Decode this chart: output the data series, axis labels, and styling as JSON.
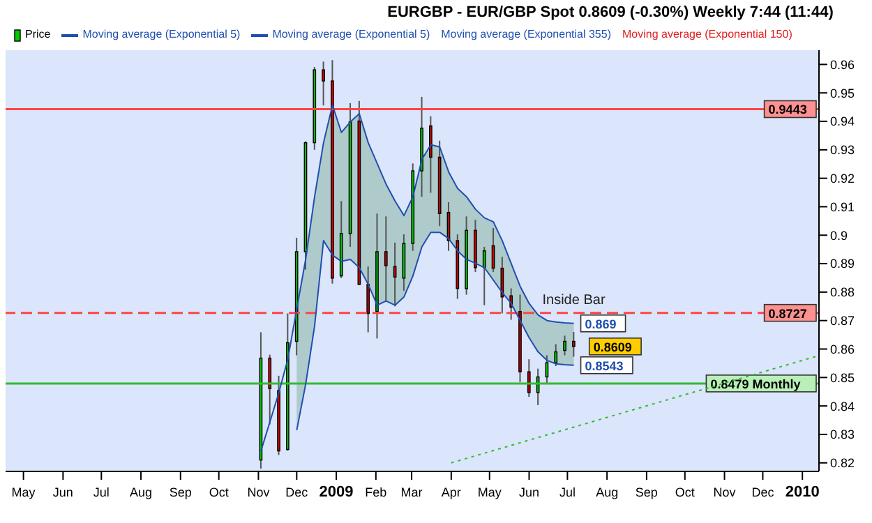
{
  "chart_data": {
    "type": "candlestick",
    "title": "EURGBP - EUR/GBP Spot   0.8609 (-0.30%)   Weekly 7:44 (11:44)",
    "x": [
      "2008-11-03",
      "2008-11-10",
      "2008-11-17",
      "2008-11-24",
      "2008-12-01",
      "2008-12-08",
      "2008-12-15",
      "2008-12-22",
      "2008-12-29",
      "2009-01-05",
      "2009-01-12",
      "2009-01-19",
      "2009-01-26",
      "2009-02-02",
      "2009-02-09",
      "2009-02-16",
      "2009-02-23",
      "2009-03-02",
      "2009-03-09",
      "2009-03-16",
      "2009-03-23",
      "2009-03-30",
      "2009-04-06",
      "2009-04-13",
      "2009-04-20",
      "2009-04-27",
      "2009-05-04",
      "2009-05-11",
      "2009-05-18",
      "2009-05-25",
      "2009-06-01",
      "2009-06-08",
      "2009-06-15",
      "2009-06-22",
      "2009-06-29",
      "2009-07-06"
    ],
    "series": [
      {
        "name": "Price",
        "value_labels": [
          null,
          null,
          null,
          null,
          null,
          null,
          null,
          null,
          null,
          null,
          null,
          null,
          null,
          null,
          null,
          null,
          null,
          null,
          null,
          null,
          null,
          null,
          null,
          null,
          null,
          null,
          null,
          null,
          null,
          null,
          null,
          null,
          null,
          null,
          null,
          "0.8609"
        ],
        "colors": [
          "#00cc00",
          "#dd0000",
          "#dd0000",
          "#00cc00",
          "#00cc00",
          "#00cc00",
          "#00cc00",
          "#dd0000",
          "#dd0000",
          "#00cc00",
          "#00cc00",
          "#dd0000",
          "#dd0000",
          "#00cc00",
          "#dd0000",
          "#dd0000",
          "#00cc00",
          "#00cc00",
          "#00cc00",
          "#dd0000",
          "#dd0000",
          "#dd0000",
          "#dd0000",
          "#00cc00",
          "#dd0000",
          "#00cc00",
          "#dd0000",
          "#dd0000",
          "#dd0000",
          "#dd0000",
          "#dd0000",
          "#00cc00",
          "#00cc00",
          "#00cc00",
          "#00cc00",
          "#dd0000"
        ],
        "ohlc": [
          [
            0.821,
            0.8659,
            0.818,
            0.8568
          ],
          [
            0.8568,
            0.858,
            0.8335,
            0.8461
          ],
          [
            0.8454,
            0.8506,
            0.8228,
            0.8242
          ],
          [
            0.8247,
            0.8725,
            0.8243,
            0.8622
          ],
          [
            0.8627,
            0.8991,
            0.8578,
            0.8942
          ],
          [
            0.8942,
            0.933,
            0.8879,
            0.9325
          ],
          [
            0.9325,
            0.9591,
            0.93,
            0.9581
          ],
          [
            0.9581,
            0.961,
            0.9456,
            0.9542
          ],
          [
            0.9542,
            0.9615,
            0.883,
            0.8849
          ],
          [
            0.8857,
            0.912,
            0.8849,
            0.9006
          ],
          [
            0.9006,
            0.9464,
            0.8959,
            0.9398
          ],
          [
            0.9401,
            0.9472,
            0.8825,
            0.8827
          ],
          [
            0.8827,
            0.889,
            0.8659,
            0.8725
          ],
          [
            0.8732,
            0.9076,
            0.8637,
            0.8942
          ],
          [
            0.8942,
            0.9066,
            0.8769,
            0.8893
          ],
          [
            0.889,
            0.8974,
            0.875,
            0.8853
          ],
          [
            0.8849,
            0.9003,
            0.8805,
            0.8971
          ],
          [
            0.8971,
            0.9252,
            0.8945,
            0.9226
          ],
          [
            0.9226,
            0.9486,
            0.9135,
            0.9376
          ],
          [
            0.9384,
            0.9418,
            0.9149,
            0.9274
          ],
          [
            0.9274,
            0.9332,
            0.9032,
            0.9076
          ],
          [
            0.908,
            0.9116,
            0.8945,
            0.8981
          ],
          [
            0.8981,
            0.9003,
            0.8776,
            0.8813
          ],
          [
            0.8812,
            0.9066,
            0.8791,
            0.9017
          ],
          [
            0.9017,
            0.9054,
            0.8871,
            0.8886
          ],
          [
            0.8886,
            0.8959,
            0.8754,
            0.8945
          ],
          [
            0.8963,
            0.9025,
            0.8871,
            0.8884
          ],
          [
            0.8884,
            0.8924,
            0.8725,
            0.8783
          ],
          [
            0.8787,
            0.8813,
            0.8703,
            0.8747
          ],
          [
            0.8732,
            0.8791,
            0.8484,
            0.852
          ],
          [
            0.852,
            0.8564,
            0.8432,
            0.8447
          ],
          [
            0.8447,
            0.8531,
            0.8403,
            0.8502
          ],
          [
            0.8502,
            0.8578,
            0.8476,
            0.8552
          ],
          [
            0.8552,
            0.8617,
            0.854,
            0.859
          ],
          [
            0.8595,
            0.8647,
            0.8578,
            0.8627
          ],
          [
            0.8627,
            0.866,
            0.8573,
            0.8609
          ]
        ]
      },
      {
        "name": "Moving average (Exponential 5)",
        "type": "line",
        "color": "#1f4fb0",
        "value_labels": [
          null,
          null,
          null,
          null,
          null,
          null,
          null,
          null,
          null,
          null,
          null,
          null,
          null,
          null,
          null,
          null,
          null,
          null,
          null,
          null,
          null,
          null,
          null,
          null,
          null,
          null,
          null,
          null,
          null,
          null,
          null,
          null,
          null,
          null,
          null,
          "0.869"
        ],
        "lower": [
          null,
          null,
          null,
          null,
          0.8315,
          0.8476,
          0.8681,
          0.8981,
          0.893,
          0.8908,
          0.8915,
          0.8886,
          0.8827,
          0.8754,
          0.8769,
          0.8754,
          0.8783,
          0.8857,
          0.8959,
          0.901,
          0.901,
          0.8988,
          0.8945,
          0.8915,
          0.8901,
          0.8886,
          0.8842,
          0.8798,
          0.876,
          0.87,
          0.864,
          0.859,
          0.856,
          0.8548,
          0.8545,
          0.8543
        ],
        "upper": [
          null,
          null,
          null,
          null,
          0.874,
          0.8915,
          0.9135,
          0.9325,
          0.9457,
          0.9361,
          0.9398,
          0.9427,
          0.9325,
          0.9252,
          0.9179,
          0.912,
          0.9069,
          0.9135,
          0.9266,
          0.9318,
          0.931,
          0.9222,
          0.9164,
          0.9135,
          0.9091,
          0.9061,
          0.9047,
          0.898,
          0.89,
          0.882,
          0.876,
          0.872,
          0.87,
          0.8695,
          0.8692,
          0.869
        ],
        "values": [
          0.8242,
          0.8344,
          0.8447,
          0.8564,
          0.874,
          0.8915,
          0.9135,
          0.9325,
          0.9457,
          0.9361,
          0.9398,
          0.9427,
          0.9325,
          0.9252,
          0.9179,
          0.912,
          0.9069,
          0.9135,
          0.9266,
          0.9318,
          0.931,
          0.9222,
          0.9164,
          0.9135,
          0.9091,
          0.9061,
          0.9047,
          0.898,
          0.89,
          0.882,
          0.876,
          0.872,
          0.87,
          0.8695,
          0.8692,
          0.869
        ]
      },
      {
        "name": "Moving average (Exponential 5)",
        "type": "line",
        "color": "#1f4fb0",
        "value_labels": [
          null,
          null,
          null,
          null,
          null,
          null,
          null,
          null,
          null,
          null,
          null,
          null,
          null,
          null,
          null,
          null,
          null,
          null,
          null,
          null,
          null,
          null,
          null,
          null,
          null,
          null,
          null,
          null,
          null,
          null,
          null,
          null,
          null,
          null,
          null,
          "0.8543"
        ],
        "values": [
          null,
          null,
          null,
          null,
          0.8315,
          0.8476,
          0.8681,
          0.8981,
          0.893,
          0.8908,
          0.8915,
          0.8886,
          0.8827,
          0.8754,
          0.8769,
          0.8754,
          0.8783,
          0.8857,
          0.8959,
          0.901,
          0.901,
          0.8988,
          0.8945,
          0.8915,
          0.8901,
          0.8886,
          0.8842,
          0.8798,
          0.876,
          0.87,
          0.864,
          0.859,
          0.856,
          0.8548,
          0.8545,
          0.8543
        ]
      },
      {
        "type": "line",
        "color": "#33bb33",
        "line_style": "dotted",
        "x": [
          "2009-04-01",
          "2010-01-14"
        ],
        "values": [
          0.82,
          0.8577
        ]
      }
    ],
    "annotations": [
      "Moving average (Exponential 355)",
      "Moving average (Exponential 150)",
      {
        "text": "Inside Bar",
        "x": "2009-07-06",
        "y": 0.866
      }
    ],
    "ref_lines": [
      {
        "axis": "y",
        "value": 0.9443,
        "label": "0.9443",
        "color": "#ff4444"
      },
      {
        "axis": "y",
        "value": 0.8727,
        "label": "0.8727",
        "color": "#ff4444",
        "line_style": "dashed"
      },
      {
        "axis": "y",
        "value": 0.8479,
        "label": "0.8479 Monthly",
        "color": "#33bb33"
      }
    ],
    "xlim": [
      "2008-04-17",
      "2010-01-14"
    ],
    "xticks": [
      {
        "value": "2008-05-01",
        "label": "May"
      },
      {
        "value": "2008-06-01",
        "label": "Jun"
      },
      {
        "value": "2008-07-01",
        "label": "Jul"
      },
      {
        "value": "2008-08-01",
        "label": "Aug"
      },
      {
        "value": "2008-09-01",
        "label": "Sep"
      },
      {
        "value": "2008-10-01",
        "label": "Oct"
      },
      {
        "value": "2008-11-01",
        "label": "Nov"
      },
      {
        "value": "2008-12-01",
        "label": "Dec"
      },
      {
        "value": "2009-01-01",
        "label": "2009"
      },
      {
        "value": "2009-02-01",
        "label": "Feb"
      },
      {
        "value": "2009-03-01",
        "label": "Mar"
      },
      {
        "value": "2009-04-01",
        "label": "Apr"
      },
      {
        "value": "2009-05-01",
        "label": "May"
      },
      {
        "value": "2009-06-01",
        "label": "Jun"
      },
      {
        "value": "2009-07-01",
        "label": "Jul"
      },
      {
        "value": "2009-08-01",
        "label": "Aug"
      },
      {
        "value": "2009-09-01",
        "label": "Sep"
      },
      {
        "value": "2009-10-01",
        "label": "Oct"
      },
      {
        "value": "2009-11-01",
        "label": "Nov"
      },
      {
        "value": "2009-12-01",
        "label": "Dec"
      },
      {
        "value": "2010-01-01",
        "label": "2010"
      }
    ],
    "ylim": [
      0.817,
      0.965
    ],
    "yticks": [
      0.82,
      0.83,
      0.84,
      0.85,
      0.86,
      0.87,
      0.88,
      0.89,
      0.9,
      0.91,
      0.92,
      0.93,
      0.94,
      0.95,
      0.96
    ],
    "legend": "top left"
  }
}
